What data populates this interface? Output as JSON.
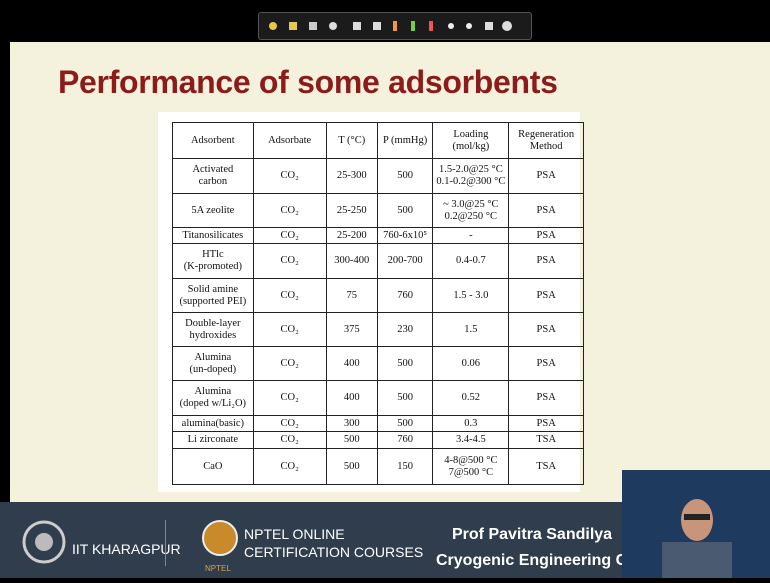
{
  "slide": {
    "title": "Performance of some adsorbents",
    "table": {
      "header": [
        "Adsorbent",
        "Adsorbate",
        "T (°C)",
        "P (mmHg)",
        "Loading\n(mol/kg)",
        "Regeneration\nMethod"
      ],
      "rows": [
        [
          "Activated\ncarbon",
          "CO₂",
          "25-300",
          "500",
          "1.5-2.0@25 °C\n0.1-0.2@300 °C",
          "PSA"
        ],
        [
          "5A zeolite",
          "CO₂",
          "25-250",
          "500",
          "~ 3.0@25 °C\n0.2@250 °C",
          "PSA"
        ],
        [
          "Titanosilicates",
          "CO₂",
          "25-200",
          "760-6x10⁵",
          "-",
          "PSA"
        ],
        [
          "HTlc\n(K-promoted)",
          "CO₂",
          "300-400",
          "200-700",
          "0.4-0.7",
          "PSA"
        ],
        [
          "Solid amine\n(supported PEI)",
          "CO₂",
          "75",
          "760",
          "1.5 - 3.0",
          "PSA"
        ],
        [
          "Double-layer\nhydroxides",
          "CO₂",
          "375",
          "230",
          "1.5",
          "PSA"
        ],
        [
          "Alumina\n(un-doped)",
          "CO₂",
          "400",
          "500",
          "0.06",
          "PSA"
        ],
        [
          "Alumina\n(doped w/Li₂O)",
          "CO₂",
          "400",
          "500",
          "0.52",
          "PSA"
        ],
        [
          "alumina(basic)",
          "CO₂",
          "300",
          "500",
          "0.3",
          "PSA"
        ],
        [
          "Li zirconate",
          "CO₂",
          "500",
          "760",
          "3.4-4.5",
          "TSA"
        ],
        [
          "CaO",
          "CO₂",
          "500",
          "150",
          "4-8@500 °C\n7@500 °C",
          "TSA"
        ]
      ]
    }
  },
  "footer": {
    "institute": "IIT KHARAGPUR",
    "nptel_line1": "NPTEL ONLINE",
    "nptel_line2": "CERTIFICATION COURSES",
    "nptel_logo": "NPTEL",
    "professor": "Prof Pavitra  Sandilya",
    "course": "Cryogenic Engineering Cen"
  }
}
